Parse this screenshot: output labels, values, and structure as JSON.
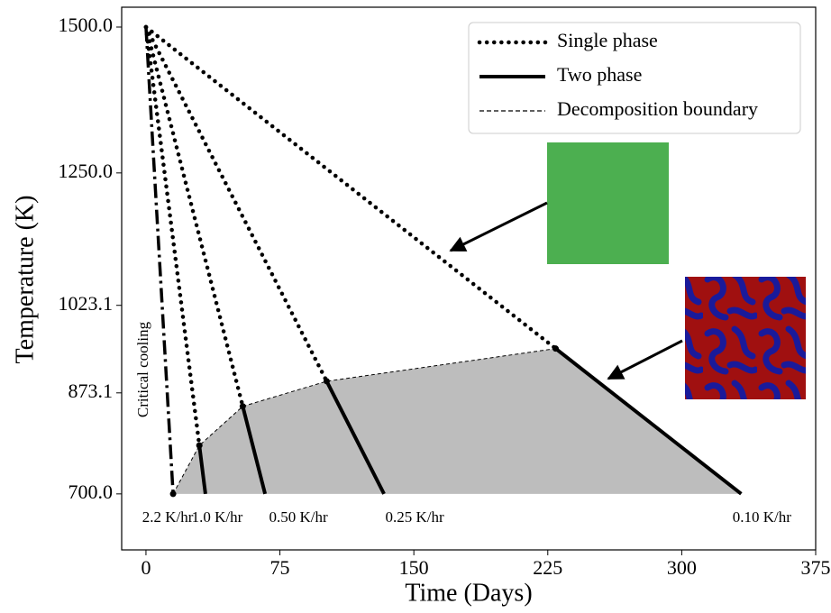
{
  "chart_data": {
    "type": "line",
    "xlabel": "Time (Days)",
    "ylabel": "Temperature (K)",
    "xlim": [
      -13.6,
      375
    ],
    "xticks": [
      0,
      75,
      150,
      225,
      300,
      375
    ],
    "ylim": [
      604,
      1534
    ],
    "yticks": [
      {
        "value": 700,
        "label": "700.0"
      },
      873.1,
      1023.1,
      {
        "value": 1250,
        "label": "1250.0"
      },
      {
        "value": 1500,
        "label": "1500.0"
      }
    ],
    "legend": [
      "Single phase",
      "Two phase",
      "Decomposition boundary"
    ],
    "critical": {
      "label": "2.2 K/hr",
      "text": "Critical cooling",
      "x": [
        0,
        15.2
      ],
      "y": [
        1500,
        700
      ]
    },
    "cooling": [
      {
        "label": "1.0 K/hr",
        "x": [
          0,
          29.9,
          33.3
        ],
        "y": [
          1500,
          783,
          700
        ]
      },
      {
        "label": "0.50 K/hr",
        "x": [
          0,
          54.2,
          66.7
        ],
        "y": [
          1500,
          850,
          700
        ]
      },
      {
        "label": "0.25 K/hr",
        "x": [
          0,
          101.2,
          133.3
        ],
        "y": [
          1500,
          893,
          700
        ]
      },
      {
        "label": "0.10 K/hr",
        "x": [
          0,
          229.4,
          333.3
        ],
        "y": [
          1500,
          949,
          700
        ]
      }
    ],
    "boundary": {
      "x": [
        15.2,
        29.9,
        54.2,
        101.2,
        229.4
      ],
      "y": [
        700,
        783,
        850,
        893,
        949
      ]
    },
    "region_color": "#bdbdbd",
    "color": "#000000"
  }
}
